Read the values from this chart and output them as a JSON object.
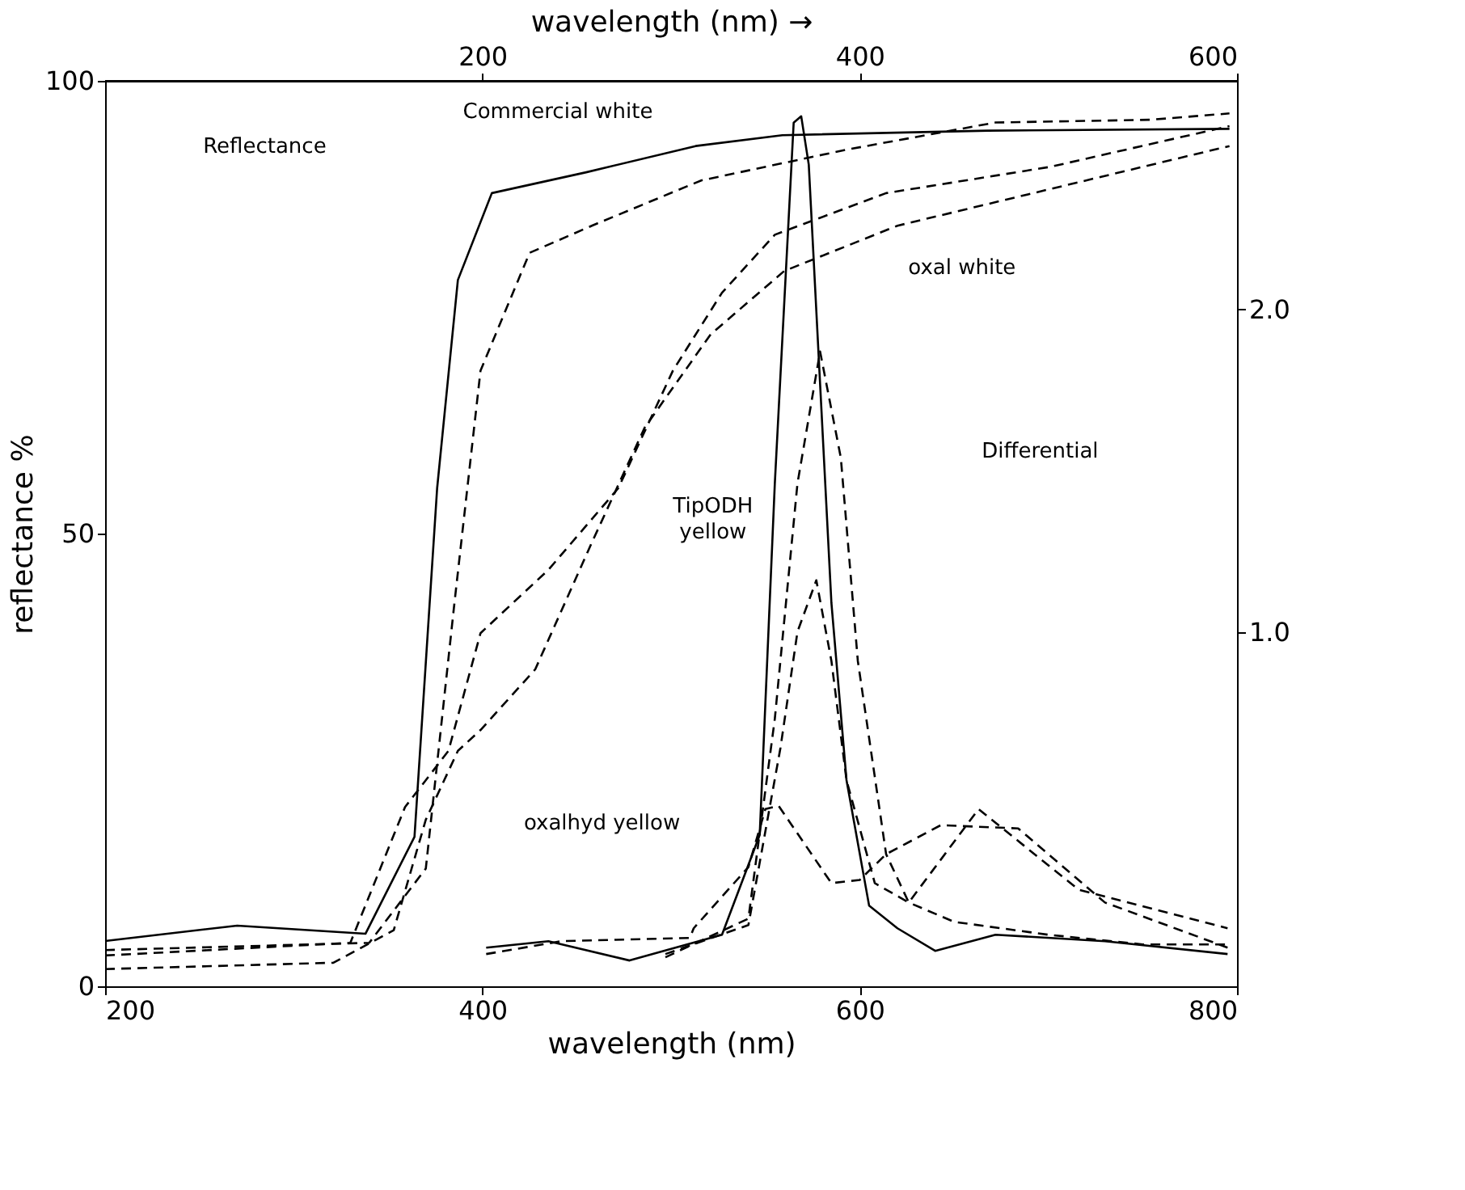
{
  "chart_data": {
    "type": "line",
    "xlabel": "wavelength (nm)",
    "ylabel": "reflectance %",
    "x2label": "wavelength (nm) →",
    "xlim": [
      200,
      800
    ],
    "xticks": [
      200,
      400,
      600,
      800
    ],
    "x2lim": [
      0,
      600
    ],
    "x2ticks": [
      200,
      400,
      600
    ],
    "ylim": [
      0,
      100
    ],
    "yticks": [
      0,
      50,
      100
    ],
    "y2lim": [
      -0.1,
      2.71
    ],
    "y2ticks": [
      {
        "value": 1,
        "label": "1.0"
      },
      {
        "value": 2,
        "label": "2.0"
      }
    ],
    "grid": false,
    "legend": false,
    "series": [
      {
        "color": "#000000",
        "line_style": "solid",
        "x": [
          200,
          270,
          338,
          364,
          376,
          387,
          405,
          455,
          513,
          559,
          668,
          796
        ],
        "values": [
          5,
          6.7,
          5.8,
          16.5,
          55,
          78,
          87.6,
          89.9,
          92.8,
          94,
          94.5,
          94.7
        ]
      },
      {
        "color": "#000000",
        "line_style": "dashed",
        "x": [
          200,
          340,
          370,
          385,
          399,
          425,
          458,
          516,
          593,
          672,
          754,
          796
        ],
        "values": [
          4,
          4.8,
          13,
          42,
          68,
          81,
          84,
          89,
          92.4,
          95.4,
          95.7,
          96.4
        ]
      },
      {
        "color": "#000000",
        "line_style": "dashed",
        "x": [
          200,
          330,
          359,
          382,
          399,
          435,
          472,
          501,
          527,
          555,
          614,
          701,
          796
        ],
        "values": [
          3.4,
          4.8,
          19.8,
          26,
          39,
          46,
          55,
          68,
          76.6,
          83,
          87.6,
          90.5,
          95
        ]
      },
      {
        "color": "#000000",
        "line_style": "dashed",
        "x": [
          200,
          321,
          353,
          370,
          387,
          399,
          428,
          458,
          486,
          521,
          560,
          620,
          700,
          796
        ],
        "values": [
          1.9,
          2.6,
          6.2,
          18.4,
          26,
          28.3,
          35,
          49,
          61.7,
          72,
          79,
          84,
          88,
          92.8
        ]
      },
      {
        "color": "#000000",
        "line_style": "solid",
        "axis": "y2",
        "x": [
          402,
          435,
          478,
          527,
          547,
          555,
          565,
          569,
          573,
          585,
          593,
          605,
          620,
          640,
          672,
          730,
          795
        ],
        "values": [
          0.02,
          0.04,
          -0.02,
          0.06,
          0.37,
          1.46,
          2.58,
          2.6,
          2.45,
          1.09,
          0.54,
          0.15,
          0.08,
          0.01,
          0.06,
          0.04,
          0
        ]
      },
      {
        "color": "#000000",
        "line_style": "dashed",
        "axis": "y2",
        "x": [
          497,
          541,
          555,
          567,
          579,
          590,
          599,
          614,
          626,
          650,
          700,
          750,
          795
        ],
        "values": [
          -0.01,
          0.11,
          0.73,
          1.46,
          1.87,
          1.54,
          0.91,
          0.31,
          0.16,
          0.1,
          0.06,
          0.03,
          0.03
        ]
      },
      {
        "color": "#000000",
        "line_style": "dashed",
        "axis": "y2",
        "x": [
          497,
          541,
          558,
          567,
          577,
          585,
          593,
          608,
          626,
          663,
          716,
          795
        ],
        "values": [
          0,
          0.09,
          0.64,
          1.0,
          1.16,
          0.91,
          0.54,
          0.22,
          0.16,
          0.45,
          0.2,
          0.08
        ]
      },
      {
        "color": "#000000",
        "line_style": "dashed",
        "axis": "y2",
        "x": [
          402,
          442,
          510,
          512,
          541,
          550,
          557,
          585,
          600,
          614,
          643,
          684,
          730,
          795
        ],
        "values": [
          0,
          0.04,
          0.05,
          0.08,
          0.27,
          0.45,
          0.46,
          0.22,
          0.23,
          0.31,
          0.4,
          0.39,
          0.16,
          0.02
        ]
      }
    ],
    "annotations": [
      "Commercial white",
      "Reflectance",
      "oxal white",
      "Differential",
      "TipODH yellow",
      "oxalhyd yellow"
    ]
  }
}
